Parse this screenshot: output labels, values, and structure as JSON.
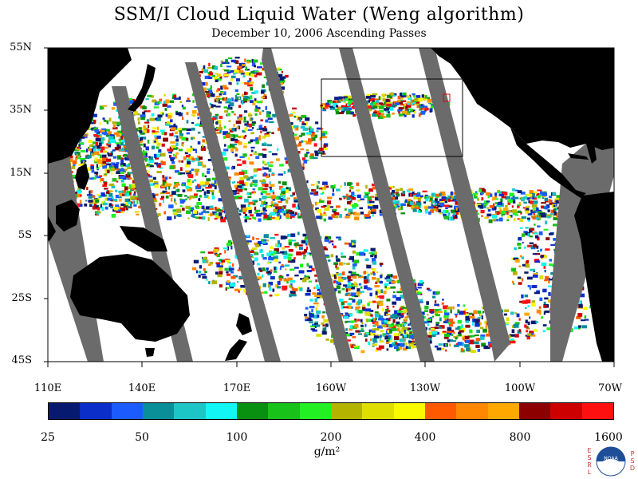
{
  "title": "SSM/I Cloud Liquid Water (Weng algorithm)",
  "subtitle": "December 10, 2006  Ascending Passes",
  "latitude_labels": [
    "55N",
    "35N",
    "15N",
    "5S",
    "25S",
    "45S"
  ],
  "longitude_labels": [
    "110E",
    "140E",
    "170E",
    "160W",
    "130W",
    "100W",
    "70W"
  ],
  "colorbar": {
    "tick_labels": [
      "25",
      "50",
      "100",
      "200",
      "400",
      "800",
      "1600"
    ],
    "unit": "g/m²",
    "colors": [
      "#081a70",
      "#0b2ec8",
      "#1c5cff",
      "#0a8e98",
      "#1cc6c6",
      "#12f6f6",
      "#0a9010",
      "#18c218",
      "#22f022",
      "#b4b400",
      "#dede00",
      "#fbfb00",
      "#ff5a00",
      "#ff8800",
      "#ffa800",
      "#8c0000",
      "#cc0000",
      "#ff1010"
    ]
  },
  "legend_colors": {
    "land": "#000000",
    "no_data_swath_gap": "#6b6b6b",
    "clear_ocean": "#ffffff"
  },
  "logo": {
    "left_letters": [
      "E",
      "S",
      "R",
      "L"
    ],
    "right_letters": [
      "P",
      "S",
      "D"
    ],
    "center_text": "NOAA"
  }
}
